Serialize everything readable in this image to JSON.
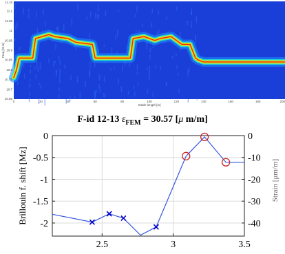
{
  "chart_data": [
    {
      "type": "heatmap",
      "title": "",
      "xlabel": "Gable length [m]",
      "ylabel": "Freq [GHz]",
      "xlim": [
        0,
        200
      ],
      "ylim": [
        10.65,
        11.15
      ],
      "x_ticks": [
        "0",
        "20",
        "40",
        "60",
        "80",
        "100",
        "120",
        "140",
        "160",
        "180",
        "200"
      ],
      "y_ticks": [
        "11.15",
        "11.1",
        "11.05",
        "11",
        "10.95",
        "10.9",
        "10.85",
        "10.8",
        "10.75",
        "10.7",
        "10.65"
      ],
      "peak_trace": {
        "x": [
          0,
          2,
          4,
          12,
          14,
          16,
          26,
          30,
          40,
          46,
          58,
          60,
          70,
          78,
          86,
          88,
          96,
          100,
          104,
          108,
          116,
          118,
          124,
          130,
          134,
          136,
          140,
          150,
          160,
          170,
          180,
          190,
          200
        ],
        "y": [
          10.76,
          10.8,
          10.86,
          10.86,
          10.86,
          10.96,
          10.98,
          10.97,
          10.96,
          10.94,
          10.93,
          10.86,
          10.86,
          10.86,
          10.86,
          10.96,
          10.97,
          10.96,
          10.95,
          10.96,
          10.97,
          10.96,
          10.93,
          10.93,
          10.86,
          10.85,
          10.84,
          10.84,
          10.84,
          10.84,
          10.84,
          10.84,
          10.84
        ]
      },
      "colormap": [
        "#0a26c8",
        "#1e3cd4",
        "#1e8cff",
        "#25e8c8",
        "#c8f030",
        "#ff9a00",
        "#e61e0a"
      ]
    },
    {
      "type": "line",
      "title": "F-id 12-13 ",
      "title_symbol": "ε",
      "title_sub": "FEM",
      "title_value": " = 30.57 [",
      "title_mu": "μ",
      "title_unit": " m/m]",
      "ylabel": "Brillouin f. shift [Mz]",
      "y2label": "Strain [μm/m]",
      "xlim": [
        2.15,
        3.5
      ],
      "ylim": [
        -2.3,
        0
      ],
      "y2lim": [
        -46,
        0
      ],
      "x_ticks": [
        "2.5",
        "3",
        "3.5"
      ],
      "y_ticks": [
        "0",
        "-0.5",
        "-1",
        "-1.5",
        "-2"
      ],
      "y2_ticks": [
        "0",
        "-10",
        "-20",
        "-30",
        "-40"
      ],
      "grid": true,
      "series": [
        {
          "x": [
            2.15,
            2.43,
            2.55,
            2.65,
            2.77,
            2.88,
            3.09,
            3.22,
            3.37,
            3.5
          ],
          "y": [
            -1.8,
            -1.98,
            -1.79,
            -1.89,
            -2.28,
            -2.09,
            -0.47,
            -0.03,
            -0.61,
            -0.61
          ],
          "color": "#3355dd"
        }
      ],
      "x_markers": {
        "x": [
          2.43,
          2.55,
          2.65,
          2.88
        ],
        "y": [
          -1.98,
          -1.79,
          -1.89,
          -2.09
        ],
        "color": "#0000cc"
      },
      "circle_markers": {
        "x": [
          3.09,
          3.22,
          3.37
        ],
        "y": [
          -0.47,
          -0.03,
          -0.61
        ],
        "color": "#cc2222"
      }
    }
  ]
}
